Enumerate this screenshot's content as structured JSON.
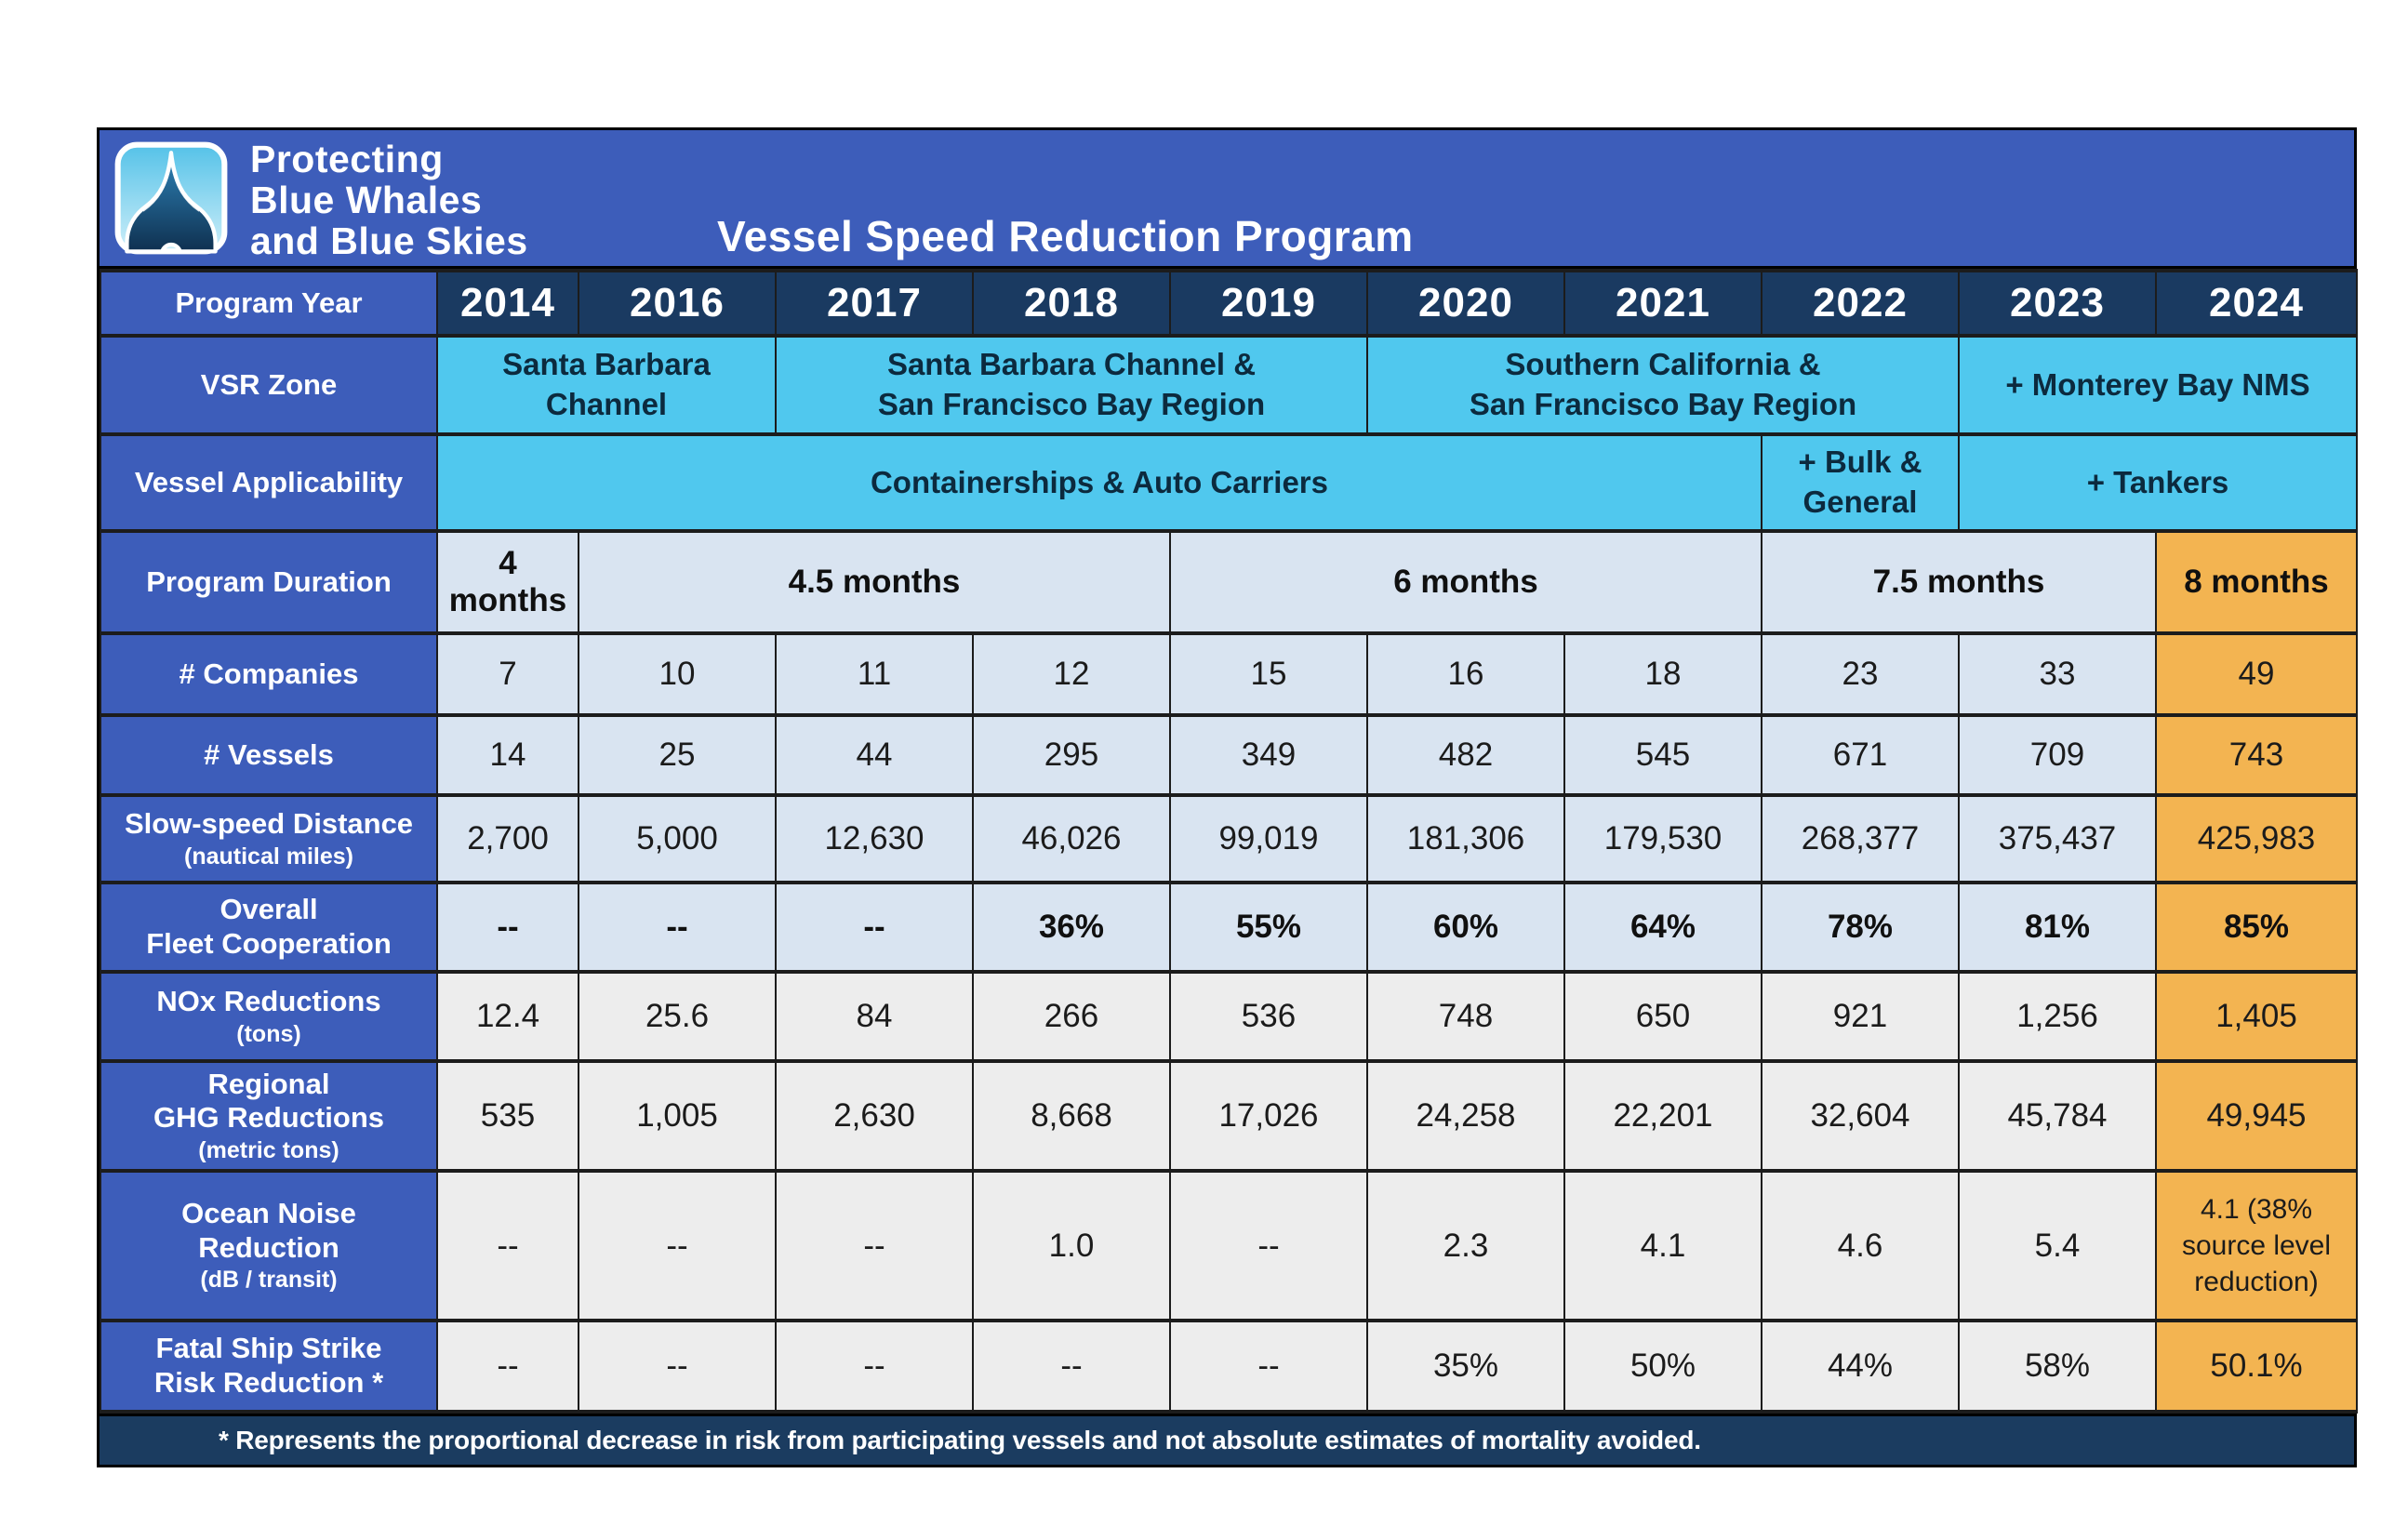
{
  "brand": {
    "line1": "Protecting",
    "line2": "Blue Whales",
    "line3": "and Blue Skies"
  },
  "title": "Vessel Speed Reduction Program",
  "accent_colors": {
    "royal_blue": "#3d5dba",
    "navy": "#1a3a61",
    "cyan": "#50c8ee",
    "light_blue_row": "#d9e4f1",
    "gray_row": "#ededed",
    "orange_2024": "#f3b451",
    "footer_navy": "#1b3c60"
  },
  "logo_icon": "whale-tail-icon",
  "table": {
    "rows": [
      {
        "id": "program-year",
        "label": "Program Year",
        "type": "years",
        "values": [
          "2014",
          "2016",
          "2017",
          "2018",
          "2019",
          "2020",
          "2021",
          "2022",
          "2023",
          "2024"
        ]
      },
      {
        "id": "vsr-zone",
        "label": "VSR Zone",
        "type": "spans",
        "tone": "cyan",
        "cells": [
          {
            "text": "Santa Barbara\nChannel",
            "span": 2
          },
          {
            "text": "Santa Barbara Channel &\nSan Francisco Bay Region",
            "span": 3
          },
          {
            "text": "Southern California &\nSan Francisco Bay Region",
            "span": 3
          },
          {
            "text": "+ Monterey Bay NMS",
            "span": 2
          }
        ]
      },
      {
        "id": "vessel-applicability",
        "label": "Vessel Applicability",
        "type": "spans",
        "tone": "cyan",
        "cells": [
          {
            "text": "Containerships & Auto Carriers",
            "span": 7
          },
          {
            "text": "+ Bulk &\nGeneral",
            "span": 1
          },
          {
            "text": "+ Tankers",
            "span": 2
          }
        ]
      },
      {
        "id": "program-duration",
        "label": "Program Duration",
        "type": "spans",
        "tone": "blue-bold",
        "cells": [
          {
            "text": "4 months",
            "span": 1
          },
          {
            "text": "4.5 months",
            "span": 3
          },
          {
            "text": "6 months",
            "span": 3
          },
          {
            "text": "7.5 months",
            "span": 2
          },
          {
            "text": "8 months",
            "span": 1,
            "highlight": true
          }
        ]
      },
      {
        "id": "companies",
        "label": "# Companies",
        "type": "values",
        "tone": "blue",
        "values": [
          "7",
          "10",
          "11",
          "12",
          "15",
          "16",
          "18",
          "23",
          "33",
          "49"
        ]
      },
      {
        "id": "vessels",
        "label": "# Vessels",
        "type": "values",
        "tone": "blue",
        "values": [
          "14",
          "25",
          "44",
          "295",
          "349",
          "482",
          "545",
          "671",
          "709",
          "743"
        ]
      },
      {
        "id": "slow-speed-distance",
        "label": "Slow-speed Distance",
        "sub": "(nautical miles)",
        "type": "values",
        "tone": "blue",
        "values": [
          "2,700",
          "5,000",
          "12,630",
          "46,026",
          "99,019",
          "181,306",
          "179,530",
          "268,377",
          "375,437",
          "425,983"
        ]
      },
      {
        "id": "fleet-cooperation",
        "label": "Overall\nFleet Cooperation",
        "type": "values",
        "tone": "blue",
        "bold": true,
        "values": [
          "--",
          "--",
          "--",
          "36%",
          "55%",
          "60%",
          "64%",
          "78%",
          "81%",
          "85%"
        ]
      },
      {
        "id": "nox-reductions",
        "label": "NOx Reductions",
        "sub": "(tons)",
        "type": "values",
        "tone": "gray",
        "values": [
          "12.4",
          "25.6",
          "84",
          "266",
          "536",
          "748",
          "650",
          "921",
          "1,256",
          "1,405"
        ]
      },
      {
        "id": "ghg-reductions",
        "label": "Regional\nGHG Reductions",
        "sub": "(metric tons)",
        "type": "values",
        "tone": "gray",
        "values": [
          "535",
          "1,005",
          "2,630",
          "8,668",
          "17,026",
          "24,258",
          "22,201",
          "32,604",
          "45,784",
          "49,945"
        ]
      },
      {
        "id": "ocean-noise",
        "label": "Ocean Noise\nReduction",
        "sub": "(dB / transit)",
        "type": "values",
        "tone": "gray",
        "values": [
          "--",
          "--",
          "--",
          "1.0",
          "--",
          "2.3",
          "4.1",
          "4.6",
          "5.4",
          "4.1 (38% source level reduction)"
        ]
      },
      {
        "id": "ship-strike",
        "label": "Fatal Ship Strike\nRisk Reduction *",
        "type": "values",
        "tone": "gray",
        "values": [
          "--",
          "--",
          "--",
          "--",
          "--",
          "35%",
          "50%",
          "44%",
          "58%",
          "50.1%"
        ]
      }
    ]
  },
  "footnote": "* Represents the proportional decrease in risk from participating vessels and not absolute estimates of mortality avoided.",
  "chart_data": {
    "type": "table",
    "title": "Vessel Speed Reduction Program",
    "categories": [
      "2014",
      "2016",
      "2017",
      "2018",
      "2019",
      "2020",
      "2021",
      "2022",
      "2023",
      "2024"
    ],
    "series": [
      {
        "name": "# Companies",
        "values": [
          7,
          10,
          11,
          12,
          15,
          16,
          18,
          23,
          33,
          49
        ]
      },
      {
        "name": "# Vessels",
        "values": [
          14,
          25,
          44,
          295,
          349,
          482,
          545,
          671,
          709,
          743
        ]
      },
      {
        "name": "Slow-speed Distance (nautical miles)",
        "values": [
          2700,
          5000,
          12630,
          46026,
          99019,
          181306,
          179530,
          268377,
          375437,
          425983
        ]
      },
      {
        "name": "Overall Fleet Cooperation (%)",
        "values": [
          null,
          null,
          null,
          36,
          55,
          60,
          64,
          78,
          81,
          85
        ]
      },
      {
        "name": "NOx Reductions (tons)",
        "values": [
          12.4,
          25.6,
          84,
          266,
          536,
          748,
          650,
          921,
          1256,
          1405
        ]
      },
      {
        "name": "Regional GHG Reductions (metric tons)",
        "values": [
          535,
          1005,
          2630,
          8668,
          17026,
          24258,
          22201,
          32604,
          45784,
          49945
        ]
      },
      {
        "name": "Ocean Noise Reduction (dB / transit)",
        "values": [
          null,
          null,
          null,
          1.0,
          null,
          2.3,
          4.1,
          4.6,
          5.4,
          4.1
        ]
      },
      {
        "name": "Fatal Ship Strike Risk Reduction (%)",
        "values": [
          null,
          null,
          null,
          null,
          null,
          35,
          50,
          44,
          58,
          50.1
        ]
      }
    ],
    "annotations": {
      "vsr_zone": [
        {
          "years": "2014-2016",
          "zone": "Santa Barbara Channel"
        },
        {
          "years": "2017-2019",
          "zone": "Santa Barbara Channel & San Francisco Bay Region"
        },
        {
          "years": "2020-2022",
          "zone": "Southern California & San Francisco Bay Region"
        },
        {
          "years": "2023-2024",
          "zone": "+ Monterey Bay NMS"
        }
      ],
      "vessel_applicability": [
        {
          "years": "2014-2021",
          "vessels": "Containerships & Auto Carriers"
        },
        {
          "years": "2022",
          "vessels": "+ Bulk & General"
        },
        {
          "years": "2023-2024",
          "vessels": "+ Tankers"
        }
      ],
      "program_duration": [
        {
          "years": "2014",
          "duration": "4 months"
        },
        {
          "years": "2016-2018",
          "duration": "4.5 months"
        },
        {
          "years": "2019-2021",
          "duration": "6 months"
        },
        {
          "years": "2022-2023",
          "duration": "7.5 months"
        },
        {
          "years": "2024",
          "duration": "8 months"
        }
      ],
      "ocean_noise_2024_note": "4.1 (38% source level reduction)",
      "highlight_column": "2024"
    }
  }
}
